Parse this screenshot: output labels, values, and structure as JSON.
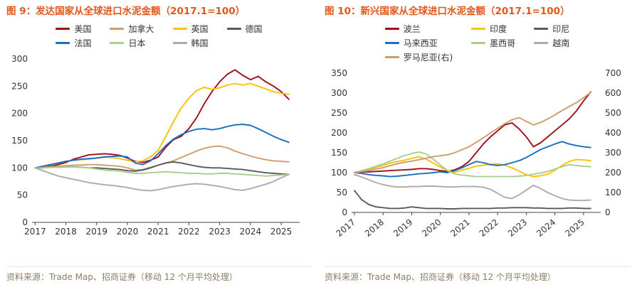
{
  "accent_color": "#e2571c",
  "source_color": "#8e7c64",
  "chart_data": [
    {
      "id": "fig9",
      "type": "line",
      "title": "图 9：发达国家从全球进口水泥金额（2017.1=100）",
      "source_note": "资料来源：Trade Map、招商证券（移动 12 个月平均处理）",
      "xlabel": "",
      "ylabel": "",
      "grid": false,
      "legend_position": "top",
      "legend_columns": 4,
      "xlim": [
        2016.9,
        2025.6
      ],
      "ylim": [
        0,
        300
      ],
      "yticks": [
        0,
        50,
        100,
        150,
        200,
        250,
        300
      ],
      "xticks": [
        "2017",
        "2018",
        "2019",
        "2020",
        "2021",
        "2022",
        "2023",
        "2024",
        "2025"
      ],
      "x_tick_rotation": 0,
      "x": [
        2017,
        2017.25,
        2017.5,
        2017.75,
        2018,
        2018.25,
        2018.5,
        2018.75,
        2019,
        2019.25,
        2019.5,
        2019.75,
        2020,
        2020.25,
        2020.5,
        2020.75,
        2021,
        2021.25,
        2021.5,
        2021.75,
        2022,
        2022.25,
        2022.5,
        2022.75,
        2023,
        2023.25,
        2023.5,
        2023.75,
        2024,
        2024.25,
        2024.5,
        2024.75,
        2025,
        2025.25
      ],
      "series": [
        {
          "name": "美国",
          "color": "#9c1016",
          "axis": "left",
          "values": [
            100,
            101,
            103,
            106,
            110,
            116,
            120,
            124,
            125,
            126,
            125,
            123,
            118,
            112,
            110,
            114,
            120,
            138,
            152,
            158,
            172,
            192,
            218,
            240,
            258,
            272,
            280,
            270,
            262,
            268,
            258,
            250,
            240,
            226
          ]
        },
        {
          "name": "加拿大",
          "color": "#cf9b70",
          "axis": "left",
          "values": [
            100,
            101,
            102,
            103,
            104,
            105,
            105,
            106,
            106,
            105,
            104,
            103,
            100,
            96,
            97,
            101,
            105,
            109,
            113,
            119,
            125,
            131,
            136,
            139,
            140,
            137,
            131,
            126,
            122,
            118,
            115,
            113,
            112,
            111
          ]
        },
        {
          "name": "英国",
          "color": "#ffc000",
          "axis": "left",
          "values": [
            100,
            103,
            106,
            109,
            112,
            114,
            115,
            116,
            118,
            120,
            119,
            117,
            114,
            111,
            113,
            120,
            132,
            158,
            185,
            210,
            228,
            242,
            248,
            244,
            247,
            252,
            255,
            252,
            255,
            250,
            245,
            240,
            237,
            235
          ]
        },
        {
          "name": "德国",
          "color": "#5a5a5a",
          "axis": "left",
          "values": [
            100,
            100,
            101,
            101,
            102,
            102,
            101,
            100,
            100,
            99,
            98,
            97,
            95,
            94,
            96,
            100,
            105,
            109,
            111,
            109,
            106,
            103,
            101,
            100,
            100,
            99,
            98,
            97,
            95,
            93,
            91,
            90,
            89,
            88
          ]
        },
        {
          "name": "法国",
          "color": "#1a6fc0",
          "axis": "left",
          "values": [
            100,
            103,
            106,
            109,
            112,
            114,
            116,
            117,
            118,
            120,
            121,
            122,
            120,
            109,
            106,
            113,
            126,
            141,
            153,
            161,
            167,
            171,
            172,
            170,
            172,
            176,
            179,
            180,
            178,
            172,
            165,
            158,
            152,
            147
          ]
        },
        {
          "name": "日本",
          "color": "#a8d08d",
          "axis": "left",
          "values": [
            100,
            100,
            101,
            101,
            102,
            102,
            101,
            100,
            98,
            96,
            95,
            94,
            92,
            90,
            90,
            91,
            92,
            93,
            92,
            91,
            90,
            90,
            89,
            89,
            90,
            90,
            89,
            88,
            87,
            86,
            85,
            86,
            87,
            88
          ]
        },
        {
          "name": "韩国",
          "color": "#ababab",
          "axis": "left",
          "values": [
            100,
            95,
            90,
            85,
            82,
            79,
            76,
            73,
            71,
            69,
            68,
            66,
            64,
            61,
            59,
            58,
            60,
            63,
            66,
            68,
            70,
            71,
            70,
            68,
            66,
            63,
            60,
            59,
            62,
            66,
            70,
            75,
            82,
            88
          ]
        }
      ]
    },
    {
      "id": "fig10",
      "type": "line",
      "title": "图 10：新兴国家从全球进口水泥金额（2017.1=100）",
      "source_note": "资料来源：Trade Map、招商证券（移动 12 个月平均处理）",
      "xlabel": "",
      "ylabel": "",
      "grid": false,
      "legend_position": "top",
      "legend_columns": 3,
      "xlim": [
        2016.9,
        2025.6
      ],
      "ylim": [
        0,
        350
      ],
      "yticks": [
        0,
        50,
        100,
        150,
        200,
        250,
        300,
        350
      ],
      "ylim_right": [
        0,
        700
      ],
      "yticks_right": [
        0,
        100,
        200,
        300,
        400,
        500,
        600,
        700
      ],
      "xticks": [
        "2017",
        "2018",
        "2019",
        "2020",
        "2021",
        "2022",
        "2023",
        "2024",
        "2025"
      ],
      "x_tick_rotation": 40,
      "x": [
        2017,
        2017.25,
        2017.5,
        2017.75,
        2018,
        2018.25,
        2018.5,
        2018.75,
        2019,
        2019.25,
        2019.5,
        2019.75,
        2020,
        2020.25,
        2020.5,
        2020.75,
        2021,
        2021.25,
        2021.5,
        2021.75,
        2022,
        2022.25,
        2022.5,
        2022.75,
        2023,
        2023.25,
        2023.5,
        2023.75,
        2024,
        2024.25,
        2024.5,
        2024.75,
        2025,
        2025.25
      ],
      "series": [
        {
          "name": "波兰",
          "color": "#9c1016",
          "axis": "left",
          "values": [
            100,
            101,
            102,
            103,
            104,
            105,
            106,
            107,
            108,
            110,
            110,
            108,
            105,
            103,
            107,
            115,
            128,
            150,
            172,
            190,
            205,
            220,
            225,
            210,
            190,
            165,
            175,
            190,
            205,
            220,
            235,
            255,
            280,
            303
          ]
        },
        {
          "name": "印度",
          "color": "#ffc000",
          "axis": "left",
          "values": [
            100,
            104,
            108,
            113,
            118,
            124,
            128,
            131,
            136,
            140,
            134,
            124,
            114,
            105,
            101,
            106,
            111,
            116,
            119,
            121,
            122,
            119,
            112,
            104,
            95,
            90,
            92,
            96,
            106,
            118,
            128,
            133,
            132,
            130
          ]
        },
        {
          "name": "印尼",
          "color": "#5a5a5a",
          "axis": "left",
          "values": [
            55,
            32,
            20,
            14,
            12,
            10,
            10,
            11,
            14,
            12,
            10,
            10,
            10,
            9,
            9,
            10,
            10,
            10,
            10,
            10,
            11,
            11,
            12,
            12,
            12,
            11,
            11,
            10,
            10,
            10,
            11,
            11,
            10,
            10
          ]
        },
        {
          "name": "马来西亚",
          "color": "#1a6fc0",
          "axis": "left",
          "values": [
            100,
            98,
            95,
            93,
            92,
            90,
            91,
            93,
            95,
            97,
            98,
            100,
            102,
            100,
            105,
            112,
            120,
            128,
            125,
            120,
            118,
            120,
            125,
            130,
            138,
            148,
            158,
            165,
            172,
            178,
            172,
            168,
            165,
            163
          ]
        },
        {
          "name": "墨西哥",
          "color": "#a8d08d",
          "axis": "left",
          "values": [
            100,
            105,
            110,
            116,
            122,
            129,
            136,
            143,
            148,
            152,
            147,
            134,
            119,
            105,
            97,
            94,
            92,
            90,
            90,
            90,
            90,
            90,
            90,
            91,
            93,
            96,
            99,
            103,
            109,
            115,
            120,
            118,
            116,
            115
          ]
        },
        {
          "name": "越南",
          "color": "#ababab",
          "axis": "left",
          "values": [
            95,
            89,
            82,
            75,
            70,
            66,
            64,
            64,
            65,
            65,
            66,
            66,
            65,
            64,
            64,
            65,
            65,
            65,
            63,
            58,
            48,
            38,
            35,
            44,
            56,
            68,
            60,
            50,
            42,
            35,
            31,
            30,
            30,
            31
          ]
        },
        {
          "name": "罗马尼亚(右)",
          "color": "#cf9b70",
          "axis": "right",
          "values": [
            200,
            205,
            210,
            218,
            225,
            235,
            245,
            252,
            258,
            265,
            272,
            280,
            285,
            290,
            300,
            315,
            330,
            352,
            375,
            400,
            422,
            446,
            466,
            476,
            458,
            440,
            452,
            470,
            490,
            512,
            532,
            552,
            576,
            604
          ]
        }
      ]
    }
  ]
}
